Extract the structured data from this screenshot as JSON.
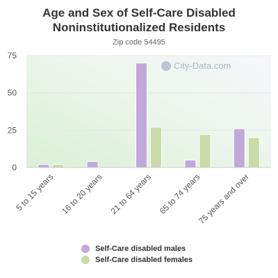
{
  "title_line1": "Age and Sex of Self-Care Disabled",
  "title_line2": "Noninstitutionalized Residents",
  "subtitle": "Zip code 54495",
  "watermark": "City-Data.com",
  "colors": {
    "males": "#c0a8da",
    "females": "#c8dba8"
  },
  "chart_data": {
    "type": "bar",
    "categories": [
      "5 to 15 years",
      "16 to 20 years",
      "21 to 64 years",
      "65 to 74 years",
      "75 years and over"
    ],
    "series": [
      {
        "name": "Self-Care disabled males",
        "values": [
          2,
          4,
          70,
          5,
          26
        ]
      },
      {
        "name": "Self-Care disabled females",
        "values": [
          2,
          0,
          27,
          22,
          20
        ]
      }
    ],
    "yticks": [
      0,
      25,
      50,
      75
    ],
    "ylim": [
      0,
      75
    ],
    "grid": true,
    "legend_position": "bottom"
  }
}
